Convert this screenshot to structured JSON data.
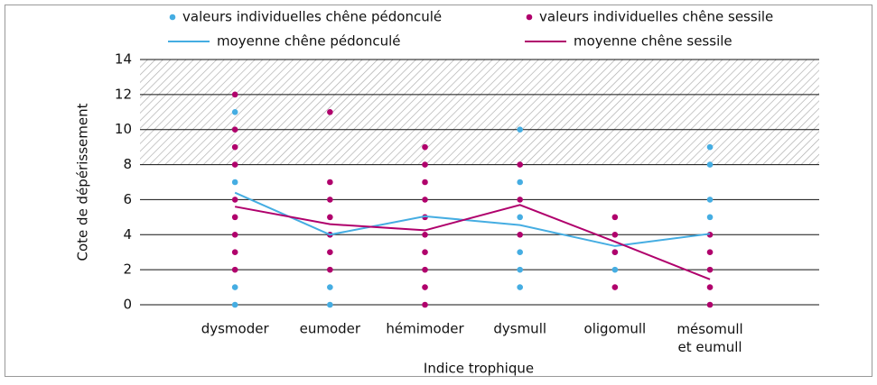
{
  "chart_data": {
    "type": "scatter",
    "x_label": "Indice trophique",
    "y_label": "Cote de dépérissement",
    "categories": [
      "dysmoder",
      "eumoder",
      "hémimoder",
      "dysmull",
      "oligomull",
      "mésomull\net eumull"
    ],
    "ylim": [
      0,
      14
    ],
    "yticks": [
      0,
      2,
      4,
      6,
      8,
      10,
      12,
      14
    ],
    "grid": true,
    "shaded_band": [
      8,
      14
    ],
    "series": [
      {
        "name": "valeurs individuelles chêne pédonculé",
        "color": "#45ade2",
        "type": "scatter",
        "x": [
          "dysmoder",
          "dysmoder",
          "dysmoder",
          "dysmoder",
          "eumoder",
          "eumoder",
          "eumoder",
          "dysmull",
          "dysmull",
          "dysmull",
          "dysmull",
          "dysmull",
          "dysmull",
          "oligomull",
          "oligomull",
          "mésomull\net eumull",
          "mésomull\net eumull",
          "mésomull\net eumull",
          "mésomull\net eumull"
        ],
        "values": [
          0,
          1,
          7,
          11,
          0,
          1,
          4,
          1,
          2,
          3,
          5,
          7,
          10,
          2,
          3,
          5,
          6,
          8,
          9
        ]
      },
      {
        "name": "valeurs individuelles chêne sessile",
        "color": "#b0006c",
        "type": "scatter",
        "x": [
          "dysmoder",
          "dysmoder",
          "dysmoder",
          "dysmoder",
          "dysmoder",
          "dysmoder",
          "dysmoder",
          "dysmoder",
          "dysmoder",
          "eumoder",
          "eumoder",
          "eumoder",
          "eumoder",
          "eumoder",
          "eumoder",
          "eumoder",
          "hémimoder",
          "hémimoder",
          "hémimoder",
          "hémimoder",
          "hémimoder",
          "hémimoder",
          "hémimoder",
          "hémimoder",
          "hémimoder",
          "hémimoder",
          "dysmull",
          "dysmull",
          "dysmull",
          "oligomull",
          "oligomull",
          "oligomull",
          "oligomull",
          "mésomull\net eumull",
          "mésomull\net eumull",
          "mésomull\net eumull",
          "mésomull\net eumull",
          "mésomull\net eumull"
        ],
        "values": [
          2,
          3,
          4,
          5,
          6,
          8,
          9,
          10,
          12,
          2,
          3,
          4,
          5,
          6,
          7,
          11,
          0,
          1,
          2,
          3,
          4,
          5,
          6,
          7,
          8,
          9,
          4,
          6,
          8,
          1,
          3,
          4,
          5,
          0,
          1,
          2,
          3,
          4
        ]
      },
      {
        "name": "moyenne chêne pédonculé",
        "color": "#45ade2",
        "type": "line",
        "values": [
          6.4,
          4.0,
          5.05,
          4.55,
          3.35,
          4.05
        ]
      },
      {
        "name": "moyenne chêne sessile",
        "color": "#b0006c",
        "type": "line",
        "values": [
          5.6,
          4.6,
          4.25,
          5.7,
          3.6,
          1.45
        ]
      }
    ]
  }
}
